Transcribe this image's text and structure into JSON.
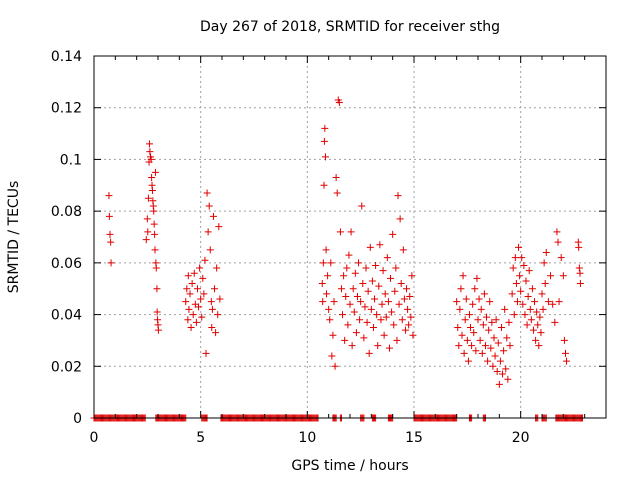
{
  "chart_data": {
    "type": "scatter",
    "title": "Day 267 of 2018, SRMTID for receiver sthg",
    "xlabel": "GPS time / hours",
    "ylabel": "SRMTID / TECUs",
    "xlim": [
      0,
      24
    ],
    "ylim": [
      0,
      0.14
    ],
    "xticks": [
      0,
      5,
      10,
      15,
      20
    ],
    "xtick_labels": [
      "0",
      "5",
      "10",
      "15",
      "20"
    ],
    "yticks": [
      0,
      0.02,
      0.04,
      0.06,
      0.08,
      0.1,
      0.12,
      0.14
    ],
    "ytick_labels": [
      "0",
      "0.02",
      "0.04",
      "0.06",
      "0.08",
      "0.1",
      "0.12",
      "0.14"
    ],
    "grid": true,
    "marker": "+",
    "color": "#e00000",
    "series": [
      {
        "name": "SRMTID",
        "points": [
          [
            0.7,
            0.086
          ],
          [
            0.72,
            0.078
          ],
          [
            0.75,
            0.071
          ],
          [
            0.78,
            0.068
          ],
          [
            0.8,
            0.06
          ],
          [
            2.45,
            0.069
          ],
          [
            2.5,
            0.077
          ],
          [
            2.52,
            0.072
          ],
          [
            2.55,
            0.085
          ],
          [
            2.58,
            0.099
          ],
          [
            2.6,
            0.106
          ],
          [
            2.62,
            0.103
          ],
          [
            2.65,
            0.101
          ],
          [
            2.68,
            0.1
          ],
          [
            2.7,
            0.093
          ],
          [
            2.72,
            0.09
          ],
          [
            2.74,
            0.088
          ],
          [
            2.76,
            0.084
          ],
          [
            2.78,
            0.082
          ],
          [
            2.8,
            0.08
          ],
          [
            2.82,
            0.075
          ],
          [
            2.84,
            0.071
          ],
          [
            2.86,
            0.065
          ],
          [
            2.88,
            0.095
          ],
          [
            2.9,
            0.06
          ],
          [
            2.92,
            0.058
          ],
          [
            2.95,
            0.05
          ],
          [
            2.96,
            0.041
          ],
          [
            2.98,
            0.038
          ],
          [
            3.0,
            0.036
          ],
          [
            3.02,
            0.034
          ],
          [
            4.3,
            0.045
          ],
          [
            4.35,
            0.05
          ],
          [
            4.4,
            0.038
          ],
          [
            4.42,
            0.055
          ],
          [
            4.45,
            0.042
          ],
          [
            4.5,
            0.048
          ],
          [
            4.55,
            0.035
          ],
          [
            4.6,
            0.052
          ],
          [
            4.65,
            0.04
          ],
          [
            4.7,
            0.056
          ],
          [
            4.75,
            0.044
          ],
          [
            4.8,
            0.037
          ],
          [
            4.85,
            0.05
          ],
          [
            4.9,
            0.043
          ],
          [
            4.95,
            0.058
          ],
          [
            5.0,
            0.046
          ],
          [
            5.05,
            0.039
          ],
          [
            5.1,
            0.054
          ],
          [
            5.15,
            0.048
          ],
          [
            5.2,
            0.061
          ],
          [
            5.25,
            0.025
          ],
          [
            5.3,
            0.087
          ],
          [
            5.35,
            0.072
          ],
          [
            5.4,
            0.082
          ],
          [
            5.45,
            0.065
          ],
          [
            5.5,
            0.045
          ],
          [
            5.52,
            0.035
          ],
          [
            5.55,
            0.042
          ],
          [
            5.6,
            0.078
          ],
          [
            5.65,
            0.05
          ],
          [
            5.7,
            0.033
          ],
          [
            5.75,
            0.058
          ],
          [
            5.8,
            0.04
          ],
          [
            5.85,
            0.074
          ],
          [
            5.9,
            0.046
          ],
          [
            10.7,
            0.052
          ],
          [
            10.72,
            0.045
          ],
          [
            10.75,
            0.06
          ],
          [
            10.78,
            0.09
          ],
          [
            10.8,
            0.107
          ],
          [
            10.82,
            0.112
          ],
          [
            10.85,
            0.101
          ],
          [
            10.88,
            0.065
          ],
          [
            10.9,
            0.048
          ],
          [
            10.95,
            0.055
          ],
          [
            11.0,
            0.042
          ],
          [
            11.05,
            0.038
          ],
          [
            11.1,
            0.06
          ],
          [
            11.15,
            0.024
          ],
          [
            11.2,
            0.032
          ],
          [
            11.25,
            0.045
          ],
          [
            11.3,
            0.02
          ],
          [
            11.35,
            0.093
          ],
          [
            11.4,
            0.087
          ],
          [
            11.45,
            0.123
          ],
          [
            11.5,
            0.122
          ],
          [
            11.55,
            0.072
          ],
          [
            11.6,
            0.05
          ],
          [
            11.65,
            0.04
          ],
          [
            11.7,
            0.055
          ],
          [
            11.75,
            0.03
          ],
          [
            11.8,
            0.047
          ],
          [
            11.85,
            0.058
          ],
          [
            11.9,
            0.036
          ],
          [
            11.95,
            0.063
          ],
          [
            12.0,
            0.044
          ],
          [
            12.05,
            0.072
          ],
          [
            12.1,
            0.028
          ],
          [
            12.15,
            0.05
          ],
          [
            12.2,
            0.041
          ],
          [
            12.25,
            0.056
          ],
          [
            12.3,
            0.033
          ],
          [
            12.35,
            0.047
          ],
          [
            12.4,
            0.06
          ],
          [
            12.45,
            0.038
          ],
          [
            12.5,
            0.045
          ],
          [
            12.55,
            0.082
          ],
          [
            12.6,
            0.052
          ],
          [
            12.65,
            0.031
          ],
          [
            12.7,
            0.043
          ],
          [
            12.75,
            0.058
          ],
          [
            12.8,
            0.037
          ],
          [
            12.85,
            0.049
          ],
          [
            12.9,
            0.025
          ],
          [
            12.95,
            0.066
          ],
          [
            13.0,
            0.042
          ],
          [
            13.05,
            0.053
          ],
          [
            13.1,
            0.035
          ],
          [
            13.15,
            0.046
          ],
          [
            13.2,
            0.059
          ],
          [
            13.25,
            0.04
          ],
          [
            13.3,
            0.028
          ],
          [
            13.35,
            0.051
          ],
          [
            13.4,
            0.067
          ],
          [
            13.45,
            0.038
          ],
          [
            13.5,
            0.044
          ],
          [
            13.55,
            0.057
          ],
          [
            13.6,
            0.032
          ],
          [
            13.65,
            0.048
          ],
          [
            13.7,
            0.039
          ],
          [
            13.75,
            0.062
          ],
          [
            13.8,
            0.045
          ],
          [
            13.85,
            0.027
          ],
          [
            13.9,
            0.054
          ],
          [
            13.95,
            0.041
          ],
          [
            14.0,
            0.071
          ],
          [
            14.05,
            0.036
          ],
          [
            14.1,
            0.049
          ],
          [
            14.15,
            0.058
          ],
          [
            14.2,
            0.03
          ],
          [
            14.25,
            0.086
          ],
          [
            14.3,
            0.044
          ],
          [
            14.35,
            0.077
          ],
          [
            14.4,
            0.052
          ],
          [
            14.45,
            0.038
          ],
          [
            14.5,
            0.065
          ],
          [
            14.55,
            0.046
          ],
          [
            14.6,
            0.034
          ],
          [
            14.65,
            0.05
          ],
          [
            14.7,
            0.042
          ],
          [
            14.75,
            0.036
          ],
          [
            14.8,
            0.047
          ],
          [
            14.85,
            0.039
          ],
          [
            14.9,
            0.055
          ],
          [
            14.95,
            0.032
          ],
          [
            17.0,
            0.045
          ],
          [
            17.05,
            0.035
          ],
          [
            17.1,
            0.028
          ],
          [
            17.15,
            0.042
          ],
          [
            17.2,
            0.05
          ],
          [
            17.25,
            0.032
          ],
          [
            17.3,
            0.055
          ],
          [
            17.35,
            0.025
          ],
          [
            17.4,
            0.038
          ],
          [
            17.45,
            0.046
          ],
          [
            17.5,
            0.03
          ],
          [
            17.55,
            0.022
          ],
          [
            17.6,
            0.04
          ],
          [
            17.65,
            0.035
          ],
          [
            17.7,
            0.028
          ],
          [
            17.75,
            0.044
          ],
          [
            17.8,
            0.033
          ],
          [
            17.85,
            0.05
          ],
          [
            17.9,
            0.026
          ],
          [
            17.95,
            0.054
          ],
          [
            18.0,
            0.038
          ],
          [
            18.05,
            0.046
          ],
          [
            18.1,
            0.03
          ],
          [
            18.15,
            0.042
          ],
          [
            18.2,
            0.025
          ],
          [
            18.25,
            0.036
          ],
          [
            18.3,
            0.048
          ],
          [
            18.35,
            0.028
          ],
          [
            18.4,
            0.039
          ],
          [
            18.45,
            0.022
          ],
          [
            18.5,
            0.034
          ],
          [
            18.55,
            0.045
          ],
          [
            18.6,
            0.027
          ],
          [
            18.65,
            0.037
          ],
          [
            18.7,
            0.02
          ],
          [
            18.75,
            0.031
          ],
          [
            18.8,
            0.024
          ],
          [
            18.85,
            0.038
          ],
          [
            18.9,
            0.018
          ],
          [
            18.95,
            0.029
          ],
          [
            19.0,
            0.013
          ],
          [
            19.05,
            0.022
          ],
          [
            19.1,
            0.035
          ],
          [
            19.15,
            0.017
          ],
          [
            19.2,
            0.026
          ],
          [
            19.25,
            0.042
          ],
          [
            19.3,
            0.019
          ],
          [
            19.35,
            0.031
          ],
          [
            19.4,
            0.015
          ],
          [
            19.45,
            0.037
          ],
          [
            19.5,
            0.028
          ],
          [
            19.6,
            0.048
          ],
          [
            19.65,
            0.058
          ],
          [
            19.7,
            0.04
          ],
          [
            19.75,
            0.062
          ],
          [
            19.8,
            0.052
          ],
          [
            19.85,
            0.045
          ],
          [
            19.9,
            0.066
          ],
          [
            19.95,
            0.055
          ],
          [
            20.0,
            0.049
          ],
          [
            20.05,
            0.062
          ],
          [
            20.1,
            0.044
          ],
          [
            20.15,
            0.059
          ],
          [
            20.2,
            0.04
          ],
          [
            20.25,
            0.053
          ],
          [
            20.3,
            0.036
          ],
          [
            20.35,
            0.047
          ],
          [
            20.4,
            0.057
          ],
          [
            20.45,
            0.042
          ],
          [
            20.5,
            0.038
          ],
          [
            20.55,
            0.05
          ],
          [
            20.6,
            0.034
          ],
          [
            20.65,
            0.045
          ],
          [
            20.7,
            0.03
          ],
          [
            20.75,
            0.041
          ],
          [
            20.8,
            0.036
          ],
          [
            20.85,
            0.028
          ],
          [
            20.9,
            0.039
          ],
          [
            20.95,
            0.033
          ],
          [
            21.0,
            0.048
          ],
          [
            21.05,
            0.042
          ],
          [
            21.1,
            0.06
          ],
          [
            21.15,
            0.052
          ],
          [
            21.2,
            0.064
          ],
          [
            21.3,
            0.045
          ],
          [
            21.4,
            0.055
          ],
          [
            21.5,
            0.044
          ],
          [
            21.6,
            0.037
          ],
          [
            21.7,
            0.072
          ],
          [
            21.75,
            0.068
          ],
          [
            21.8,
            0.045
          ],
          [
            21.9,
            0.062
          ],
          [
            22.0,
            0.055
          ],
          [
            22.05,
            0.03
          ],
          [
            22.1,
            0.025
          ],
          [
            22.15,
            0.022
          ],
          [
            22.7,
            0.068
          ],
          [
            22.72,
            0.066
          ],
          [
            22.75,
            0.058
          ],
          [
            22.78,
            0.056
          ],
          [
            22.8,
            0.052
          ]
        ],
        "zero_segments": [
          [
            0.0,
            1.9
          ],
          [
            1.95,
            2.4
          ],
          [
            2.9,
            4.3
          ],
          [
            5.05,
            5.3
          ],
          [
            5.95,
            10.5
          ],
          [
            11.2,
            11.35
          ],
          [
            11.55,
            11.6
          ],
          [
            12.5,
            12.65
          ],
          [
            13.05,
            13.2
          ],
          [
            13.8,
            14.0
          ],
          [
            15.0,
            17.0
          ],
          [
            17.6,
            17.7
          ],
          [
            18.25,
            18.35
          ],
          [
            20.7,
            20.8
          ],
          [
            21.0,
            21.2
          ],
          [
            21.65,
            22.9
          ]
        ]
      }
    ]
  }
}
